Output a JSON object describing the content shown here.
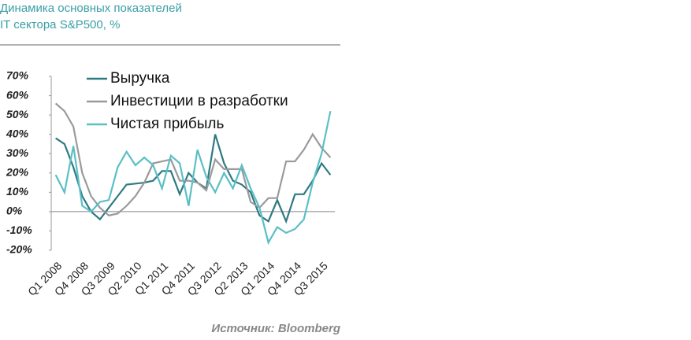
{
  "chart_data": {
    "type": "line",
    "title": "Динамика основных показателей",
    "subtitle": "IT сектора S&P500, %",
    "source": "Источник: Bloomberg",
    "categories": [
      "Q1 2008",
      null,
      null,
      "Q4 2008",
      null,
      null,
      "Q3 2009",
      null,
      null,
      "Q2 2010",
      null,
      null,
      "Q1 2011",
      null,
      null,
      "Q4 2011",
      null,
      null,
      "Q3 2012",
      null,
      null,
      "Q2 2013",
      null,
      null,
      "Q1 2014",
      null,
      null,
      "Q4 2014",
      null,
      null,
      "Q3 2015",
      null
    ],
    "series": [
      {
        "name": "Выручка",
        "color": "#2e7a80",
        "values": [
          38,
          35,
          23,
          8,
          0,
          -4,
          2,
          8,
          14,
          14.5,
          15,
          16,
          21,
          21,
          9,
          20,
          15,
          12,
          40,
          25,
          16,
          14,
          10,
          -2,
          -5,
          6,
          -5,
          9,
          9,
          16,
          25,
          19
        ]
      },
      {
        "name": "Инвестиции в разработки",
        "color": "#9a9a9a",
        "values": [
          56,
          52,
          44,
          20,
          8,
          2,
          -2,
          -1,
          3,
          8,
          15,
          25,
          26,
          27,
          16,
          16,
          15,
          11,
          27,
          22,
          22,
          22,
          5,
          2,
          7,
          7,
          26,
          26,
          32,
          40,
          33,
          28
        ]
      },
      {
        "name": "Чистая прибыль",
        "color": "#5bbfc6",
        "values": [
          19,
          10,
          34,
          3,
          0,
          5,
          6,
          23,
          31,
          24,
          28,
          24,
          12,
          29,
          25,
          3,
          32,
          18,
          10,
          20,
          12,
          24,
          12,
          2,
          -16,
          -8,
          -11,
          -9,
          -4,
          15,
          30,
          52
        ]
      }
    ],
    "ylim": [
      -20,
      70
    ],
    "yticks": [
      {
        "value": -20,
        "label": "-20%"
      },
      {
        "value": -10,
        "label": "-10%"
      },
      {
        "value": 0,
        "label": "0%"
      },
      {
        "value": 10,
        "label": "10%"
      },
      {
        "value": 20,
        "label": "20%"
      },
      {
        "value": 30,
        "label": "30%"
      },
      {
        "value": 40,
        "label": "40%"
      },
      {
        "value": 50,
        "label": "50%"
      },
      {
        "value": 60,
        "label": "60%"
      },
      {
        "value": 70,
        "label": "70%"
      }
    ]
  }
}
